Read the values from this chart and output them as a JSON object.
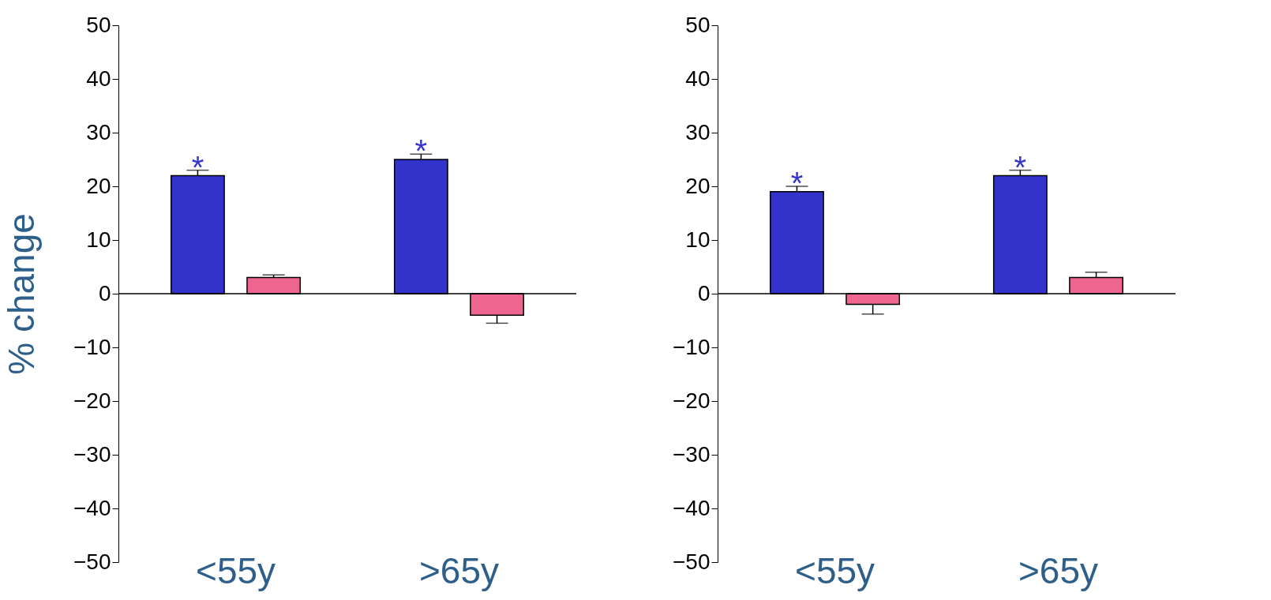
{
  "chart_data": [
    {
      "type": "bar",
      "ylabel": "% change",
      "categories": [
        "<55y",
        ">65y"
      ],
      "ylim": [
        -50,
        50
      ],
      "yticks": [
        -50,
        -40,
        -30,
        -20,
        -10,
        0,
        10,
        20,
        30,
        40,
        50
      ],
      "series": [
        {
          "color": "#3333cc",
          "values": [
            22,
            25
          ],
          "errors": [
            [
              22,
              23
            ],
            [
              25,
              26
            ]
          ]
        },
        {
          "color": "#ee6690",
          "values": [
            3,
            -4
          ],
          "errors": [
            [
              3,
              3.5
            ],
            [
              -5.5,
              -4
            ]
          ]
        }
      ],
      "annotations": [
        "*",
        "*"
      ]
    },
    {
      "type": "bar",
      "categories": [
        "<55y",
        ">65y"
      ],
      "ylim": [
        -50,
        50
      ],
      "yticks": [
        -50,
        -40,
        -30,
        -20,
        -10,
        0,
        10,
        20,
        30,
        40,
        50
      ],
      "series": [
        {
          "color": "#3333cc",
          "values": [
            19,
            22
          ],
          "errors": [
            [
              19,
              20
            ],
            [
              22,
              23
            ]
          ]
        },
        {
          "color": "#ee6690",
          "values": [
            -2,
            3
          ],
          "errors": [
            [
              -3.8,
              -2
            ],
            [
              3,
              4
            ]
          ]
        }
      ],
      "annotations": [
        "*",
        "*"
      ]
    }
  ]
}
